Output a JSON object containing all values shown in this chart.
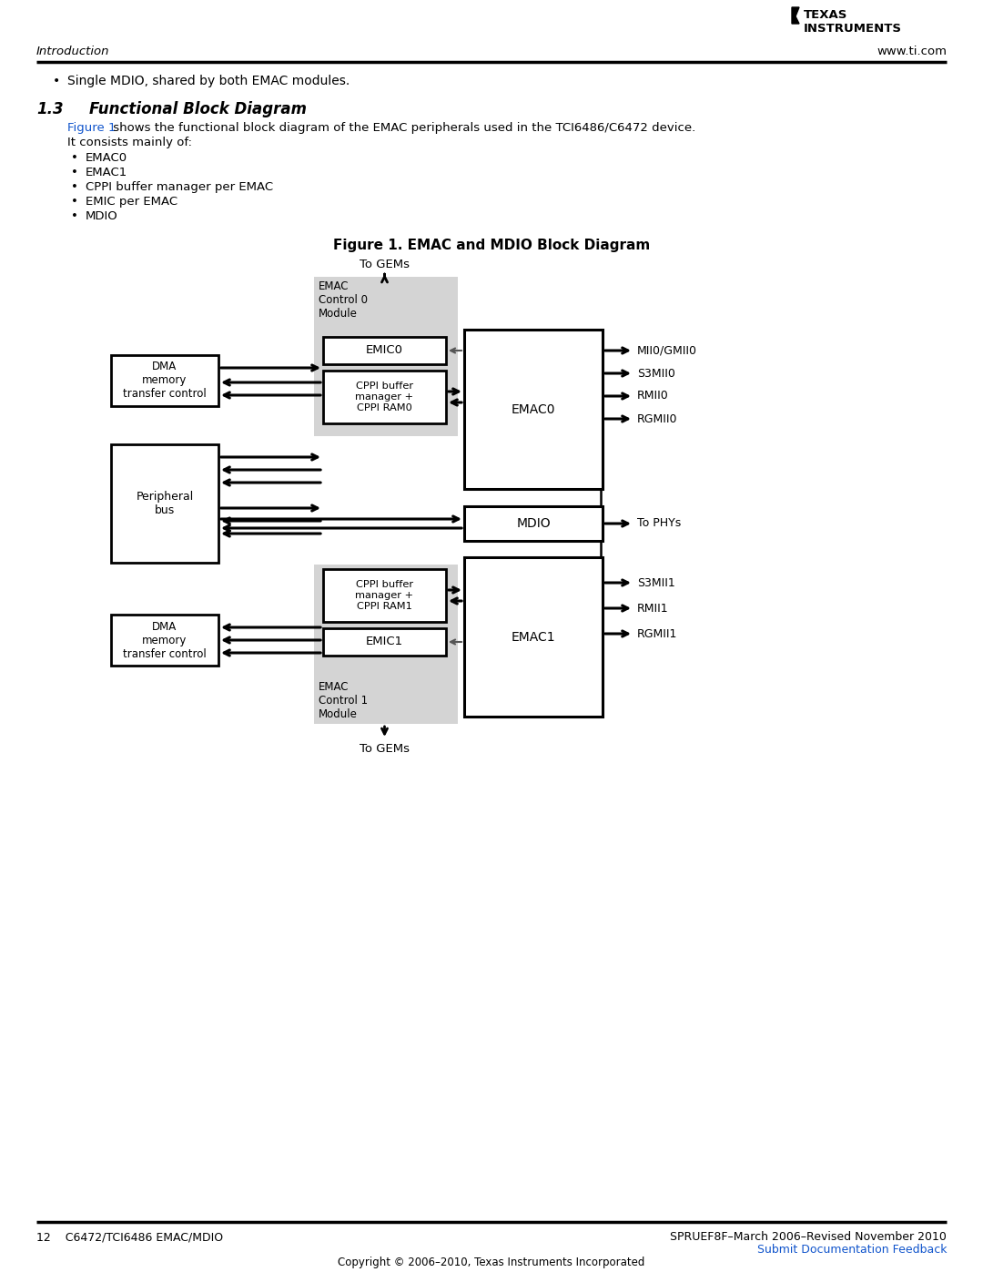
{
  "page_title_left": "Introduction",
  "page_title_right": "www.ti.com",
  "bullet_text": "Single MDIO, shared by both EMAC modules.",
  "section_num": "1.3",
  "section_title": "Functional Block Diagram",
  "body_line1_link": "Figure 1",
  "body_line1_rest": " shows the functional block diagram of the EMAC peripherals used in the TCI6486/C6472 device.",
  "body_line2": "It consists mainly of:",
  "bullets": [
    "EMAC0",
    "EMAC1",
    "CPPI buffer manager per EMAC",
    "EMIC per EMAC",
    "MDIO"
  ],
  "figure_title": "Figure 1. EMAC and MDIO Block Diagram",
  "to_gems_top": "To GEMs",
  "to_gems_bot": "To GEMs",
  "emac_ctrl0_lines": [
    "EMAC",
    "Control 0",
    "Module"
  ],
  "emac_ctrl1_lines": [
    "EMAC",
    "Control 1",
    "Module"
  ],
  "emic0_label": "EMIC0",
  "emic1_label": "EMIC1",
  "cppi0_label": "CPPI buffer\nmanager +\nCPPI RAM0",
  "cppi1_label": "CPPI buffer\nmanager +\nCPPI RAM1",
  "emac0_label": "EMAC0",
  "emac1_label": "EMAC1",
  "mdio_label": "MDIO",
  "dma_label": "DMA\nmemory\ntransfer control",
  "periph_label": "Peripheral\nbus",
  "right_labels_emac0": [
    "MII0/GMII0",
    "S3MII0",
    "RMII0",
    "RGMII0"
  ],
  "right_labels_mdio": "To PHYs",
  "right_labels_emac1": [
    "S3MII1",
    "RMII1",
    "RGMII1"
  ],
  "footer_left": "12    C6472/TCI6486 EMAC/MDIO",
  "footer_right": "SPRUEF8F–March 2006–Revised November 2010",
  "footer_link": "Submit Documentation Feedback",
  "footer_copyright": "Copyright © 2006–2010, Texas Instruments Incorporated",
  "bg_color": "#ffffff",
  "gray_fill": "#d4d4d4"
}
